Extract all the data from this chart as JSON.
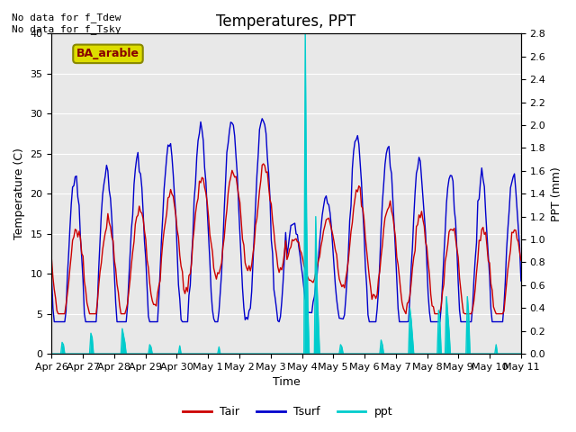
{
  "title": "Temperatures, PPT",
  "xlabel": "Time",
  "ylabel_left": "Temperature (C)",
  "ylabel_right": "PPT (mm)",
  "annotation_top_left": "No data for f_Tdew\nNo data for f_Tsky",
  "legend_label": "BA_arable",
  "ylim_left": [
    0,
    40
  ],
  "ylim_right": [
    0,
    2.8
  ],
  "yticks_left": [
    0,
    5,
    10,
    15,
    20,
    25,
    30,
    35,
    40
  ],
  "yticks_right": [
    0.0,
    0.2,
    0.4,
    0.6,
    0.8,
    1.0,
    1.2,
    1.4,
    1.6,
    1.8,
    2.0,
    2.2,
    2.4,
    2.6,
    2.8
  ],
  "bg_color": "#e8e8e8",
  "line_tair_color": "#cc0000",
  "line_tsurf_color": "#0000cc",
  "line_ppt_color": "#00cccc",
  "legend_box_facecolor": "#dddd00",
  "legend_box_edgecolor": "#888800",
  "figsize": [
    6.4,
    4.8
  ],
  "dpi": 100
}
